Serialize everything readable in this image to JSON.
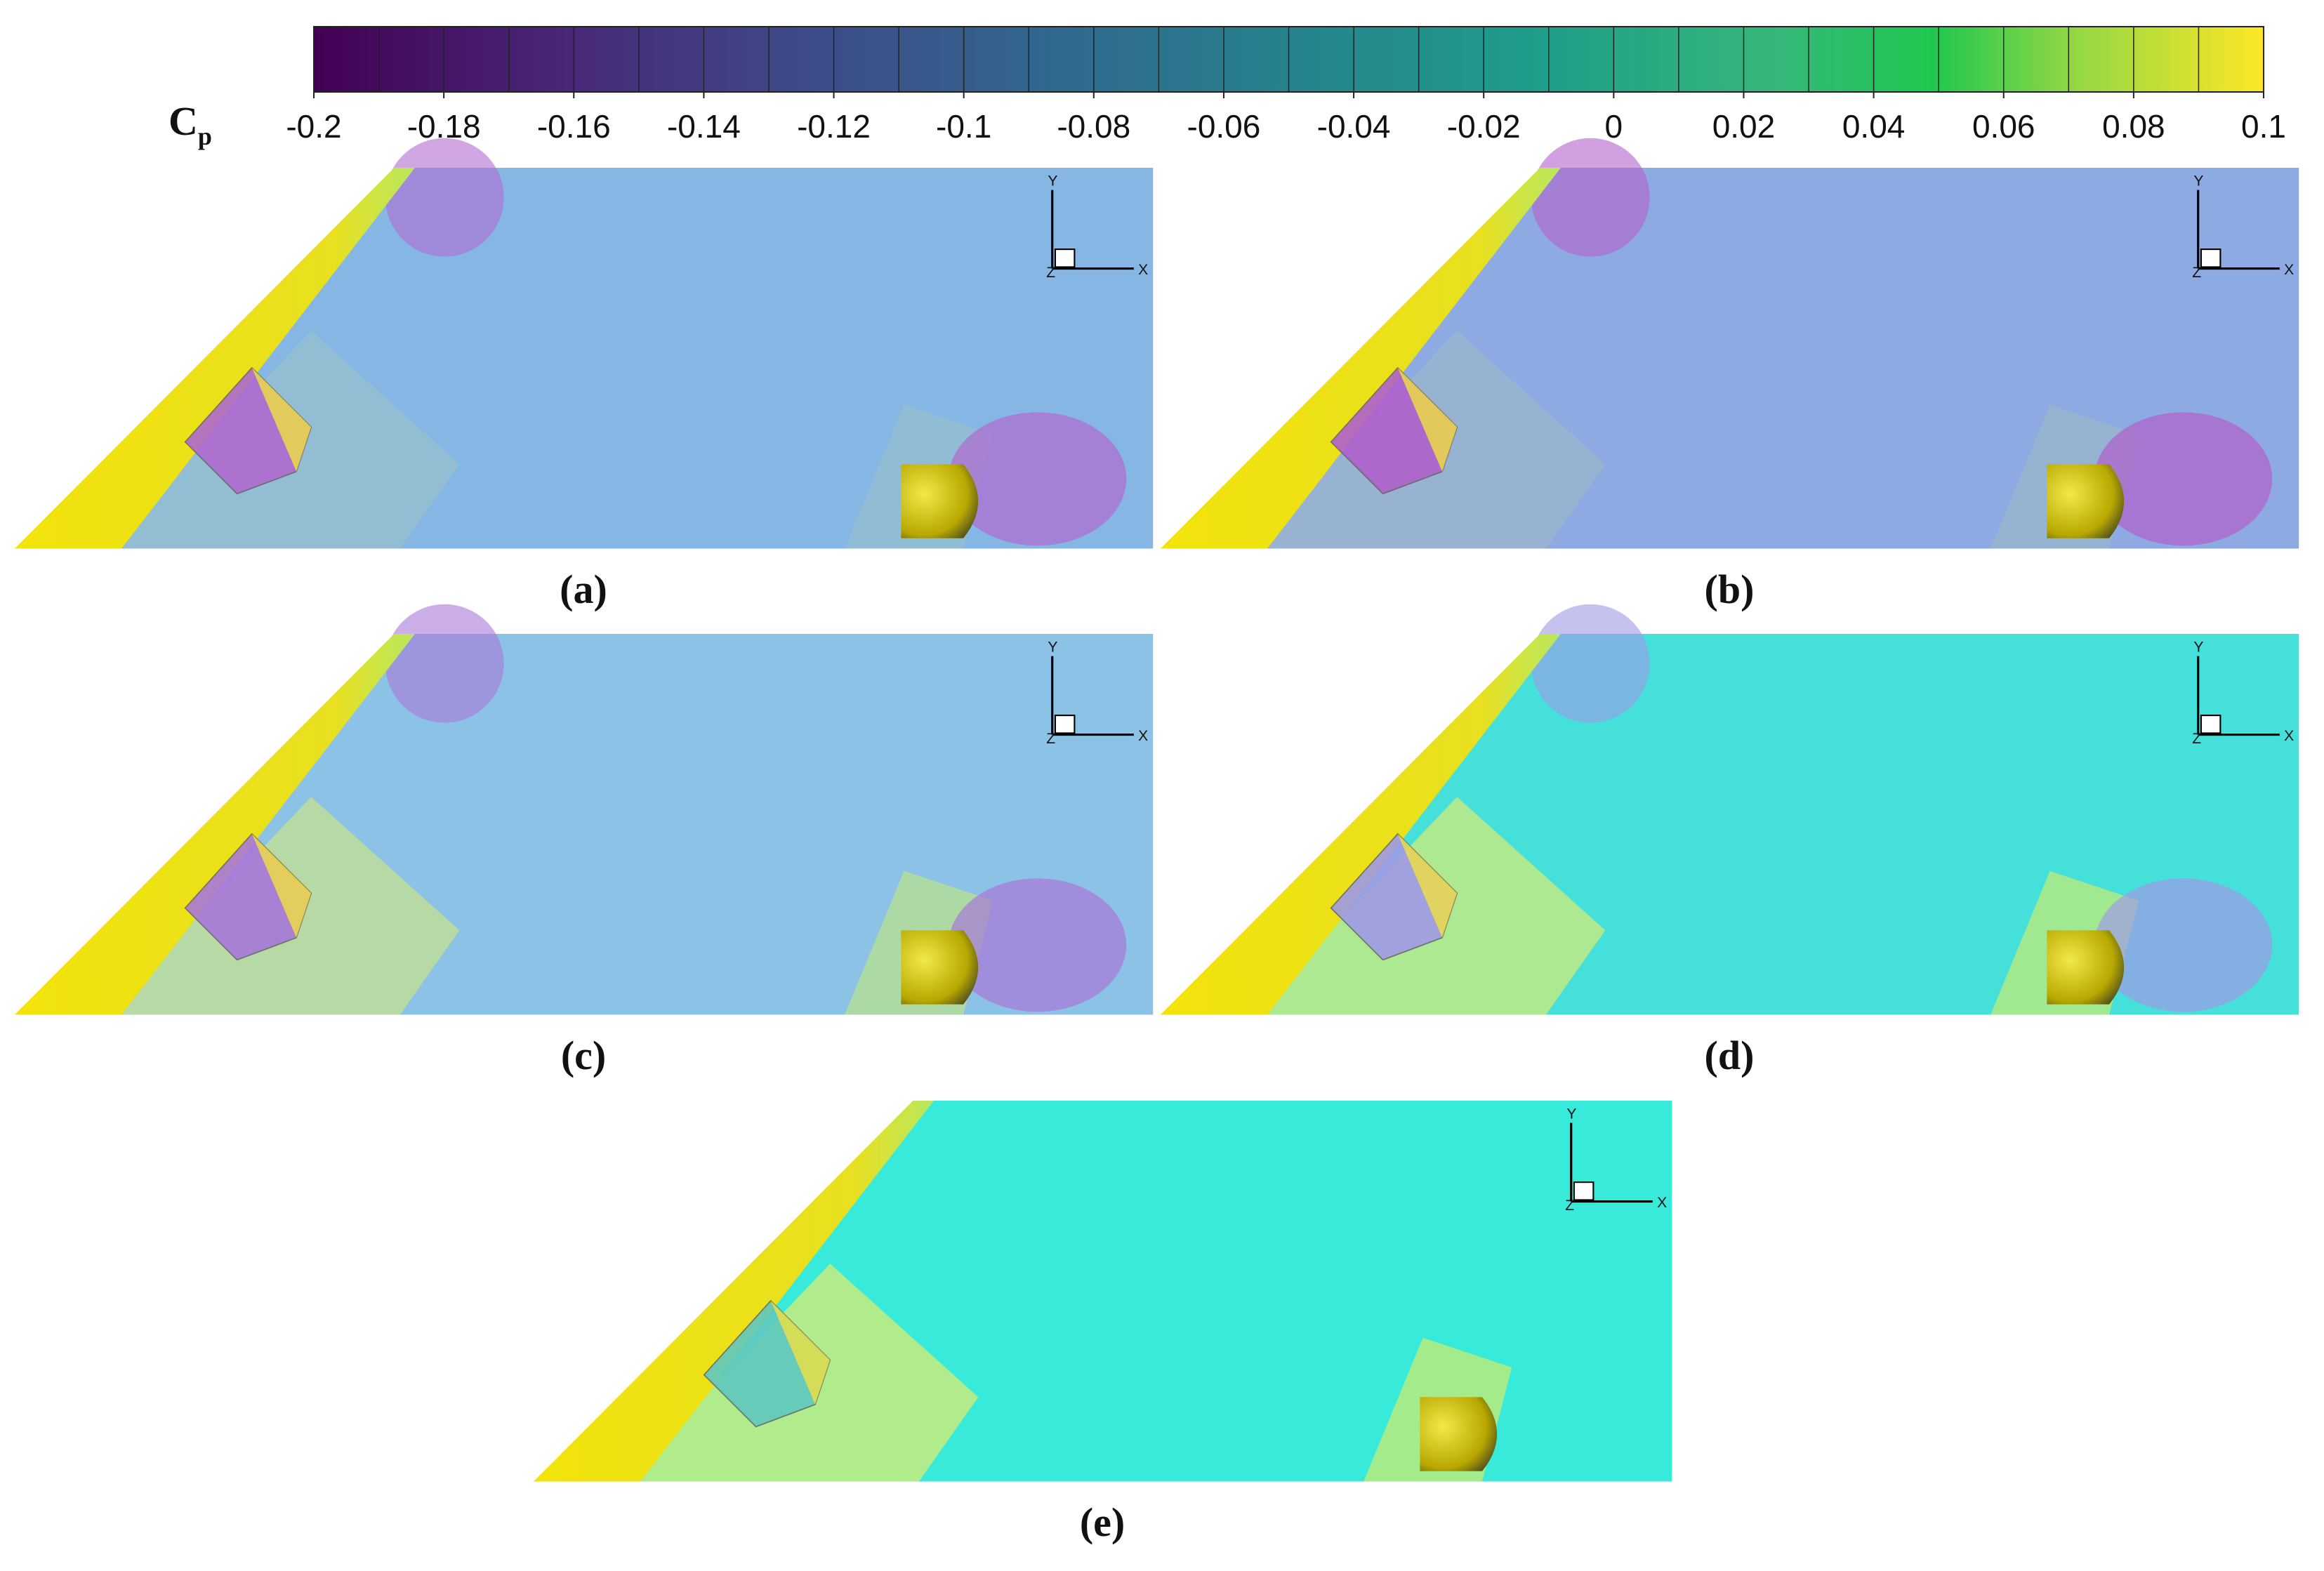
{
  "colorbar": {
    "label": "C",
    "label_sub": "p",
    "lim": [
      -0.2,
      0.1
    ],
    "ticks": [
      -0.2,
      -0.18,
      -0.16,
      -0.14,
      -0.12,
      -0.1,
      -0.08,
      -0.06,
      -0.04,
      -0.02,
      0,
      0.02,
      0.04,
      0.06,
      0.08,
      0.1
    ]
  },
  "panels": [
    {
      "label": "(a)",
      "axes": {
        "x": "X",
        "y": "Y",
        "z": "Z"
      }
    },
    {
      "label": "(b)",
      "axes": {
        "x": "X",
        "y": "Y",
        "z": "Z"
      }
    },
    {
      "label": "(c)",
      "axes": {
        "x": "X",
        "y": "Y",
        "z": "Z"
      }
    },
    {
      "label": "(d)",
      "axes": {
        "x": "X",
        "y": "Y",
        "z": "Z"
      }
    },
    {
      "label": "(e)",
      "axes": {
        "x": "X",
        "y": "Y",
        "z": "Z"
      }
    }
  ]
}
